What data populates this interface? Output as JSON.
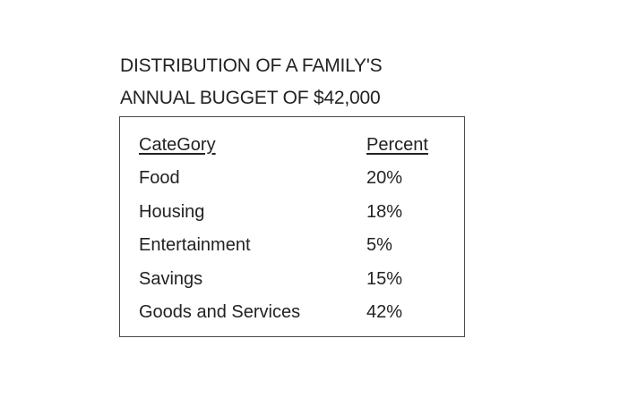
{
  "chart_data": {
    "type": "table",
    "title": "DISTRIBUTION OF A FAMILY'S ANNUAL BUGGET OF $42,000",
    "title_lines": [
      "DISTRIBUTION OF A FAMILY'S",
      "ANNUAL BUGGET OF $42,000"
    ],
    "columns": [
      "CateGory",
      "Percent"
    ],
    "rows": [
      {
        "category": "Food",
        "percent": "20%"
      },
      {
        "category": "Housing",
        "percent": "18%"
      },
      {
        "category": "Entertainment",
        "percent": "5%"
      },
      {
        "category": "Savings",
        "percent": "15%"
      },
      {
        "category": "Goods and Services",
        "percent": "42%"
      }
    ]
  }
}
